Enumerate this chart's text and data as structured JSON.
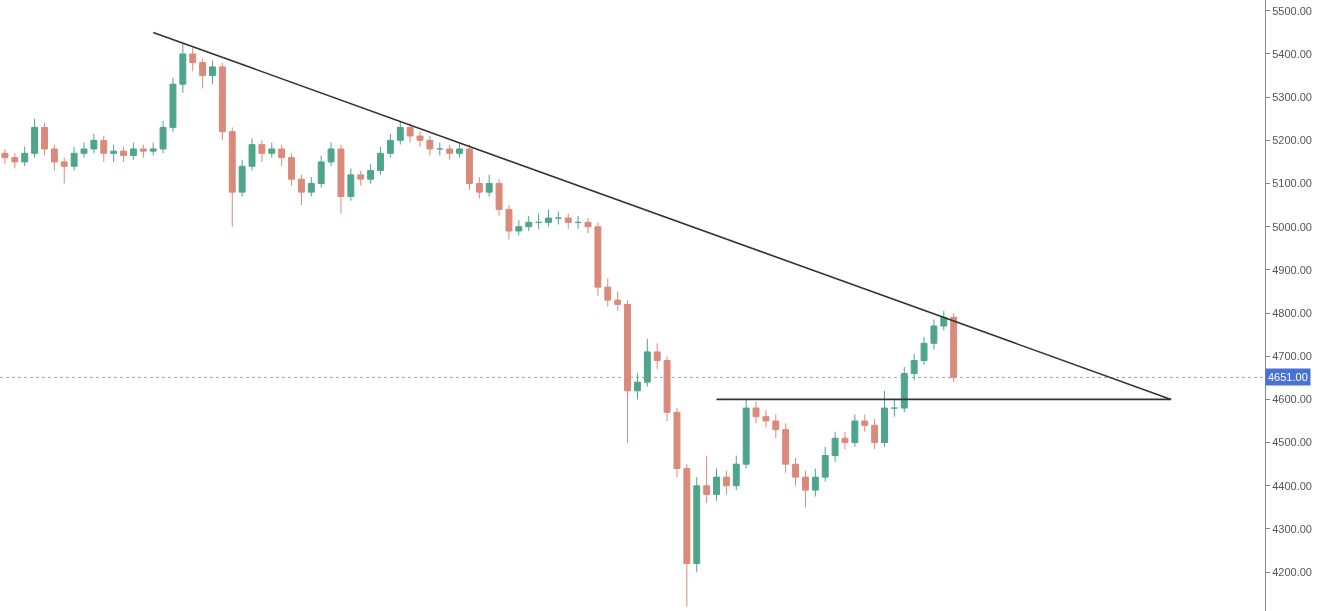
{
  "chart_data": {
    "type": "candlestick",
    "categories": [
      null,
      null,
      null,
      null,
      null,
      null,
      null,
      null,
      null,
      null,
      null,
      null,
      null,
      null,
      null,
      null,
      null,
      null,
      null,
      null,
      null,
      null,
      null,
      null,
      null,
      null,
      null,
      null,
      null,
      null,
      null,
      null,
      null,
      null,
      null,
      null,
      null,
      null,
      null,
      null,
      null,
      null,
      null,
      null,
      null,
      null,
      null,
      null,
      null,
      null,
      null,
      null,
      null,
      null,
      null,
      null,
      null,
      null,
      null,
      null,
      null,
      null,
      null,
      null,
      null,
      null,
      null,
      null,
      null,
      null,
      null,
      null,
      null,
      null,
      null,
      null,
      null,
      null,
      null,
      null,
      null,
      null,
      null,
      null,
      null,
      null,
      null,
      null,
      null,
      null,
      null,
      null,
      null,
      null,
      null,
      null,
      null,
      null,
      null,
      null,
      null,
      null,
      null,
      null,
      null,
      null,
      null,
      null,
      null,
      null,
      null,
      null,
      null,
      null,
      null,
      null,
      null,
      null,
      null,
      null,
      null,
      null,
      null,
      null,
      null,
      null,
      null,
      null
    ],
    "ohlc": [
      [
        5170,
        5180,
        5145,
        5160
      ],
      [
        5160,
        5170,
        5135,
        5150
      ],
      [
        5150,
        5185,
        5140,
        5170
      ],
      [
        5170,
        5250,
        5160,
        5230
      ],
      [
        5230,
        5240,
        5165,
        5180
      ],
      [
        5180,
        5190,
        5130,
        5150
      ],
      [
        5150,
        5160,
        5100,
        5140
      ],
      [
        5140,
        5185,
        5130,
        5170
      ],
      [
        5170,
        5195,
        5160,
        5180
      ],
      [
        5180,
        5215,
        5170,
        5200
      ],
      [
        5200,
        5210,
        5150,
        5170
      ],
      [
        5170,
        5190,
        5150,
        5175
      ],
      [
        5175,
        5185,
        5150,
        5165
      ],
      [
        5165,
        5195,
        5155,
        5180
      ],
      [
        5180,
        5190,
        5160,
        5175
      ],
      [
        5175,
        5195,
        5165,
        5180
      ],
      [
        5180,
        5245,
        5170,
        5230
      ],
      [
        5230,
        5345,
        5220,
        5330
      ],
      [
        5330,
        5425,
        5310,
        5400
      ],
      [
        5400,
        5415,
        5360,
        5380
      ],
      [
        5380,
        5390,
        5320,
        5350
      ],
      [
        5350,
        5385,
        5330,
        5370
      ],
      [
        5370,
        5380,
        5200,
        5220
      ],
      [
        5220,
        5230,
        5000,
        5080
      ],
      [
        5080,
        5155,
        5070,
        5140
      ],
      [
        5140,
        5205,
        5130,
        5190
      ],
      [
        5190,
        5200,
        5150,
        5170
      ],
      [
        5170,
        5195,
        5160,
        5180
      ],
      [
        5180,
        5190,
        5140,
        5160
      ],
      [
        5160,
        5170,
        5095,
        5110
      ],
      [
        5110,
        5120,
        5050,
        5080
      ],
      [
        5080,
        5115,
        5070,
        5100
      ],
      [
        5100,
        5165,
        5090,
        5150
      ],
      [
        5150,
        5195,
        5140,
        5180
      ],
      [
        5180,
        5190,
        5030,
        5070
      ],
      [
        5070,
        5135,
        5060,
        5120
      ],
      [
        5120,
        5130,
        5095,
        5110
      ],
      [
        5110,
        5145,
        5100,
        5130
      ],
      [
        5130,
        5185,
        5120,
        5170
      ],
      [
        5170,
        5215,
        5160,
        5200
      ],
      [
        5200,
        5245,
        5190,
        5230
      ],
      [
        5230,
        5240,
        5195,
        5210
      ],
      [
        5210,
        5220,
        5185,
        5200
      ],
      [
        5200,
        5210,
        5165,
        5180
      ],
      [
        5180,
        5195,
        5165,
        5180
      ],
      [
        5180,
        5190,
        5155,
        5170
      ],
      [
        5170,
        5195,
        5160,
        5180
      ],
      [
        5180,
        5190,
        5085,
        5100
      ],
      [
        5100,
        5115,
        5065,
        5080
      ],
      [
        5080,
        5120,
        5070,
        5100
      ],
      [
        5100,
        5110,
        5025,
        5040
      ],
      [
        5040,
        5050,
        4970,
        4990
      ],
      [
        4990,
        5015,
        4980,
        5000
      ],
      [
        5000,
        5025,
        4990,
        5010
      ],
      [
        5010,
        5030,
        4995,
        5010
      ],
      [
        5010,
        5040,
        5000,
        5020
      ],
      [
        5020,
        5035,
        5005,
        5020
      ],
      [
        5020,
        5030,
        4995,
        5010
      ],
      [
        5010,
        5025,
        4995,
        5010
      ],
      [
        5010,
        5020,
        4985,
        5000
      ],
      [
        5000,
        5010,
        4840,
        4860
      ],
      [
        4860,
        4880,
        4815,
        4830
      ],
      [
        4830,
        4850,
        4805,
        4820
      ],
      [
        4820,
        4830,
        4500,
        4620
      ],
      [
        4620,
        4660,
        4600,
        4640
      ],
      [
        4640,
        4740,
        4630,
        4710
      ],
      [
        4710,
        4730,
        4670,
        4690
      ],
      [
        4690,
        4700,
        4550,
        4570
      ],
      [
        4570,
        4580,
        4420,
        4440
      ],
      [
        4440,
        4450,
        4120,
        4220
      ],
      [
        4220,
        4420,
        4200,
        4400
      ],
      [
        4400,
        4470,
        4360,
        4380
      ],
      [
        4380,
        4440,
        4365,
        4420
      ],
      [
        4420,
        4435,
        4380,
        4400
      ],
      [
        4400,
        4470,
        4390,
        4450
      ],
      [
        4450,
        4600,
        4440,
        4580
      ],
      [
        4580,
        4595,
        4545,
        4560
      ],
      [
        4560,
        4575,
        4535,
        4550
      ],
      [
        4550,
        4565,
        4510,
        4530
      ],
      [
        4530,
        4545,
        4430,
        4450
      ],
      [
        4450,
        4465,
        4400,
        4420
      ],
      [
        4420,
        4435,
        4350,
        4390
      ],
      [
        4390,
        4440,
        4375,
        4420
      ],
      [
        4420,
        4490,
        4410,
        4470
      ],
      [
        4470,
        4525,
        4455,
        4510
      ],
      [
        4510,
        4525,
        4485,
        4500
      ],
      [
        4500,
        4565,
        4490,
        4550
      ],
      [
        4550,
        4565,
        4525,
        4540
      ],
      [
        4540,
        4555,
        4485,
        4500
      ],
      [
        4500,
        4620,
        4490,
        4580
      ],
      [
        4580,
        4600,
        4560,
        4580
      ],
      [
        4580,
        4675,
        4570,
        4660
      ],
      [
        4660,
        4705,
        4645,
        4690
      ],
      [
        4690,
        4745,
        4680,
        4730
      ],
      [
        4730,
        4785,
        4715,
        4770
      ],
      [
        4770,
        4805,
        4760,
        4790
      ],
      [
        4790,
        4800,
        4640,
        4651
      ],
      null,
      null,
      null,
      null,
      null,
      null,
      null,
      null,
      null,
      null,
      null,
      null,
      null,
      null,
      null,
      null,
      null,
      null,
      null,
      null,
      null,
      null,
      null,
      null,
      null,
      null,
      null,
      null,
      null,
      null,
      null
    ],
    "colors": [
      "#d98a7a",
      "#d98a7a",
      "#4ea58c",
      "#4ea58c",
      "#d98a7a",
      "#d98a7a",
      "#d98a7a",
      "#4ea58c",
      "#4ea58c",
      "#4ea58c",
      "#d98a7a",
      "#4ea58c",
      "#d98a7a",
      "#4ea58c",
      "#d98a7a",
      "#4ea58c",
      "#4ea58c",
      "#4ea58c",
      "#4ea58c",
      "#d98a7a",
      "#d98a7a",
      "#4ea58c",
      "#d98a7a",
      "#d98a7a",
      "#4ea58c",
      "#4ea58c",
      "#d98a7a",
      "#4ea58c",
      "#d98a7a",
      "#d98a7a",
      "#d98a7a",
      "#4ea58c",
      "#4ea58c",
      "#4ea58c",
      "#d98a7a",
      "#4ea58c",
      "#d98a7a",
      "#4ea58c",
      "#4ea58c",
      "#4ea58c",
      "#4ea58c",
      "#d98a7a",
      "#d98a7a",
      "#d98a7a",
      "#4ea58c",
      "#d98a7a",
      "#4ea58c",
      "#d98a7a",
      "#d98a7a",
      "#4ea58c",
      "#d98a7a",
      "#d98a7a",
      "#4ea58c",
      "#4ea58c",
      "#4ea58c",
      "#4ea58c",
      "#4ea58c",
      "#d98a7a",
      "#4ea58c",
      "#d98a7a",
      "#d98a7a",
      "#d98a7a",
      "#d98a7a",
      "#d98a7a",
      "#4ea58c",
      "#4ea58c",
      "#d98a7a",
      "#d98a7a",
      "#d98a7a",
      "#d98a7a",
      "#4ea58c",
      "#d98a7a",
      "#4ea58c",
      "#d98a7a",
      "#4ea58c",
      "#4ea58c",
      "#d98a7a",
      "#d98a7a",
      "#d98a7a",
      "#d98a7a",
      "#d98a7a",
      "#d98a7a",
      "#4ea58c",
      "#4ea58c",
      "#4ea58c",
      "#d98a7a",
      "#4ea58c",
      "#d98a7a",
      "#d98a7a",
      "#4ea58c",
      "#4ea58c",
      "#4ea58c",
      "#4ea58c",
      "#4ea58c",
      "#4ea58c",
      "#4ea58c",
      "#d98a7a",
      null,
      null,
      null,
      null,
      null,
      null,
      null,
      null,
      null,
      null,
      null,
      null,
      null,
      null,
      null,
      null,
      null,
      null,
      null,
      null,
      null,
      null,
      null,
      null,
      null,
      null,
      null,
      null,
      null,
      null,
      null
    ],
    "series": [
      {
        "type": "line",
        "color": "#333333",
        "values": [
          null,
          null,
          null,
          null,
          null,
          null,
          null,
          null,
          null,
          null,
          null,
          null,
          null,
          null,
          null,
          5450,
          null,
          null,
          null,
          null,
          null,
          null,
          null,
          null,
          null,
          null,
          null,
          null,
          null,
          null,
          null,
          null,
          null,
          null,
          null,
          null,
          null,
          null,
          null,
          null,
          null,
          null,
          null,
          null,
          null,
          null,
          null,
          null,
          null,
          null,
          null,
          null,
          null,
          null,
          null,
          null,
          null,
          null,
          null,
          null,
          null,
          null,
          null,
          null,
          null,
          null,
          null,
          null,
          null,
          null,
          null,
          null,
          null,
          null,
          null,
          null,
          null,
          null,
          null,
          null,
          null,
          null,
          null,
          null,
          null,
          null,
          null,
          null,
          null,
          null,
          null,
          null,
          null,
          null,
          null,
          null,
          null,
          null,
          null,
          null,
          null,
          null,
          null,
          null,
          null,
          null,
          null,
          null,
          null,
          null,
          null,
          null,
          null,
          null,
          null,
          null,
          null,
          null,
          4600,
          null,
          null,
          null,
          null,
          null,
          null,
          null,
          null,
          null
        ]
      },
      {
        "type": "line",
        "color": "#333333",
        "values": [
          null,
          null,
          null,
          null,
          null,
          null,
          null,
          null,
          null,
          null,
          null,
          null,
          null,
          null,
          null,
          null,
          null,
          null,
          null,
          null,
          null,
          null,
          null,
          null,
          null,
          null,
          null,
          null,
          null,
          null,
          null,
          null,
          null,
          null,
          null,
          null,
          null,
          null,
          null,
          null,
          null,
          null,
          null,
          null,
          null,
          null,
          null,
          null,
          null,
          null,
          null,
          null,
          null,
          null,
          null,
          null,
          null,
          null,
          null,
          null,
          null,
          null,
          null,
          null,
          null,
          null,
          null,
          null,
          null,
          null,
          null,
          null,
          4600,
          null,
          null,
          null,
          null,
          null,
          null,
          null,
          null,
          null,
          null,
          null,
          null,
          null,
          null,
          null,
          null,
          null,
          null,
          null,
          null,
          null,
          null,
          null,
          null,
          null,
          null,
          null,
          null,
          null,
          null,
          null,
          null,
          null,
          null,
          null,
          null,
          null,
          null,
          null,
          null,
          null,
          null,
          null,
          null,
          null,
          4600,
          null,
          null,
          null,
          null,
          null,
          null,
          null,
          null,
          null
        ]
      }
    ],
    "ref_lines": [
      {
        "axis": "y",
        "value": 4651,
        "label": "4651.00",
        "color": "#9aa4b8",
        "line_style": "dotted"
      }
    ],
    "ylim": [
      4110,
      5525
    ],
    "yticks": [
      {
        "value": 4200,
        "label": "4200.00"
      },
      {
        "value": 4300,
        "label": "4300.00"
      },
      {
        "value": 4400,
        "label": "4400.00"
      },
      {
        "value": 4500,
        "label": "4500.00"
      },
      {
        "value": 4600,
        "label": "4600.00"
      },
      {
        "value": 4700,
        "label": "4700.00"
      },
      {
        "value": 4800,
        "label": "4800.00"
      },
      {
        "value": 4900,
        "label": "4900.00"
      },
      {
        "value": 5000,
        "label": "5000.00"
      },
      {
        "value": 5100,
        "label": "5100.00"
      },
      {
        "value": 5200,
        "label": "5200.00"
      },
      {
        "value": 5300,
        "label": "5300.00"
      },
      {
        "value": 5400,
        "label": "5400.00"
      },
      {
        "value": 5500,
        "label": "5500.00"
      }
    ],
    "tick_labels": "y",
    "grid": false
  }
}
